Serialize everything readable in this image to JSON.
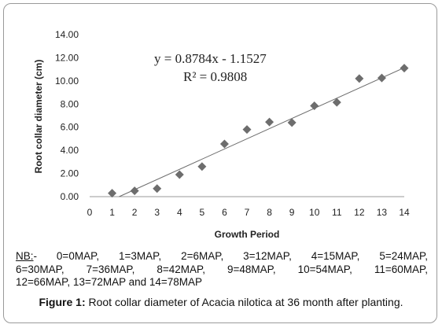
{
  "chart_data": {
    "type": "scatter",
    "xlabel": "Growth Period",
    "ylabel": "Root collar diameter (cm)",
    "xlim": [
      0,
      14
    ],
    "ylim": [
      0,
      14
    ],
    "x_ticks": [
      "0",
      "1",
      "2",
      "3",
      "4",
      "5",
      "6",
      "7",
      "8",
      "9",
      "10",
      "11",
      "12",
      "13",
      "14"
    ],
    "y_ticks": [
      "0.00",
      "2.00",
      "4.00",
      "6.00",
      "8.00",
      "10.00",
      "12.00",
      "14.00"
    ],
    "x": [
      1,
      2,
      3,
      4,
      5,
      6,
      7,
      8,
      9,
      10,
      11,
      12,
      13,
      14
    ],
    "y": [
      0.3,
      0.5,
      0.7,
      1.9,
      2.6,
      4.55,
      5.8,
      6.45,
      6.4,
      7.85,
      8.15,
      10.2,
      10.25,
      11.1
    ],
    "trendline": {
      "slope": 0.8784,
      "intercept": -1.1527
    },
    "equation": "y = 0.8784x - 1.1527",
    "r_squared": "R² = 0.9808",
    "marker": "diamond",
    "marker_color": "#6d6d6d",
    "line_color": "#6d6d6d",
    "grid": false
  },
  "note": {
    "nb_label": "NB:",
    "line1": "- 0=0MAP, 1=3MAP, 2=6MAP, 3=12MAP, 4=15MAP, 5=24MAP,",
    "line2": "6=30MAP, 7=36MAP, 8=42MAP, 9=48MAP, 10=54MAP, 11=60MAP,",
    "line3": "12=66MAP, 13=72MAP and 14=78MAP"
  },
  "caption": {
    "label": "Figure 1:",
    "text": " Root collar diameter of Acacia nilotica at 36 month after planting."
  }
}
